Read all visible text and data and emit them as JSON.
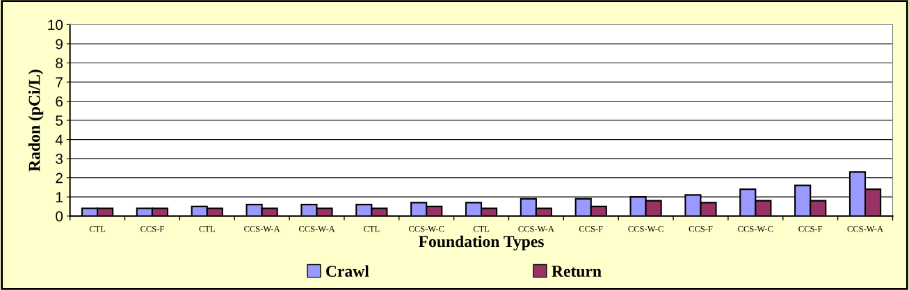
{
  "chart_data": {
    "type": "bar",
    "xlabel": "Foundation Types",
    "ylabel": "Radon (pCi/L)",
    "categories": [
      "CTL",
      "CCS-F",
      "CTL",
      "CCS-W-A",
      "CCS-W-A",
      "CTL",
      "CCS-W-C",
      "CTL",
      "CCS-W-A",
      "CCS-F",
      "CCS-W-C",
      "CCS-F",
      "CCS-W-C",
      "CCS-F",
      "CCS-W-A"
    ],
    "series": [
      {
        "name": "Crawl",
        "color": "#9999ff",
        "values": [
          0.4,
          0.4,
          0.5,
          0.6,
          0.6,
          0.6,
          0.7,
          0.7,
          0.9,
          0.9,
          1.0,
          1.1,
          1.4,
          1.6,
          2.3
        ]
      },
      {
        "name": "Return",
        "color": "#993366",
        "values": [
          0.4,
          0.4,
          0.4,
          0.4,
          0.4,
          0.4,
          0.5,
          0.4,
          0.4,
          0.5,
          0.8,
          0.7,
          0.8,
          0.8,
          1.4
        ]
      }
    ],
    "ylim": [
      0,
      10
    ],
    "yticks": [
      0,
      1,
      2,
      3,
      4,
      5,
      6,
      7,
      8,
      9,
      10
    ],
    "grid": "y",
    "legend": "bottom"
  }
}
